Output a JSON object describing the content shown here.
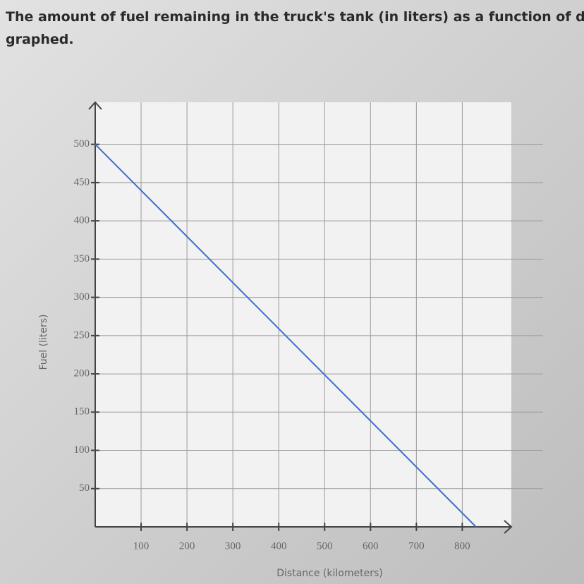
{
  "question": [
    "The amount of fuel remaining in the truck's tank (in liters) as a function of distan",
    "graphed."
  ],
  "chart_data": {
    "type": "line",
    "x": [
      0,
      830
    ],
    "values": [
      500,
      0
    ],
    "color": "#3f6fc6",
    "xlabel": "Distance (kilometers)",
    "ylabel": "Fuel (liters)",
    "xlim": [
      0,
      907
    ],
    "ylim": [
      0,
      555
    ],
    "xticks": [
      100,
      200,
      300,
      400,
      500,
      600,
      700,
      800
    ],
    "yticks": [
      50,
      100,
      150,
      200,
      250,
      300,
      350,
      400,
      450,
      500
    ],
    "grid": true
  }
}
